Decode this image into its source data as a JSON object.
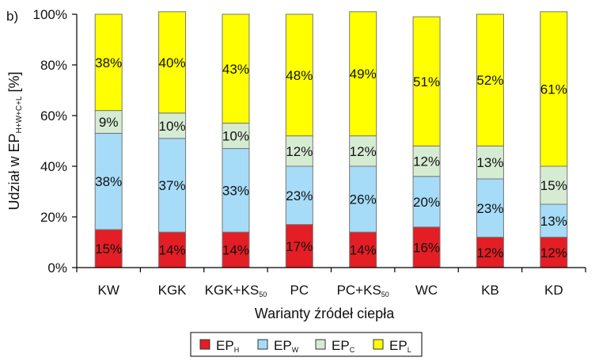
{
  "panel_label": "b)",
  "chart_data": {
    "type": "bar",
    "stacked": true,
    "categories": [
      {
        "text": "KW",
        "sub": ""
      },
      {
        "text": "KGK",
        "sub": ""
      },
      {
        "text": "KGK+KS",
        "sub": "50"
      },
      {
        "text": "PC",
        "sub": ""
      },
      {
        "text": "PC+KS",
        "sub": "50"
      },
      {
        "text": "WC",
        "sub": ""
      },
      {
        "text": "KB",
        "sub": ""
      },
      {
        "text": "KD",
        "sub": ""
      }
    ],
    "series": [
      {
        "name": "EP",
        "sub": "H",
        "color": "#e31e24",
        "values": [
          15,
          14,
          14,
          17,
          14,
          16,
          12,
          12
        ]
      },
      {
        "name": "EP",
        "sub": "W",
        "color": "#a6dcf7",
        "values": [
          38,
          37,
          33,
          23,
          26,
          20,
          23,
          13
        ]
      },
      {
        "name": "EP",
        "sub": "C",
        "color": "#d6ecd2",
        "values": [
          9,
          10,
          10,
          12,
          12,
          12,
          13,
          15
        ]
      },
      {
        "name": "EP",
        "sub": "L",
        "color": "#ffff00",
        "values": [
          38,
          40,
          43,
          48,
          49,
          51,
          52,
          61
        ]
      }
    ],
    "ylim": [
      0,
      100
    ],
    "yticks": [
      0,
      20,
      40,
      60,
      80,
      100
    ],
    "ytick_suffix": "%",
    "value_suffix": "%",
    "ylabel": {
      "main": "Udział w EP",
      "sub": "H+W+C+L",
      "unit": " [%]"
    },
    "xlabel": "Warianty źródeł ciepła",
    "legend_position": "bottom-center",
    "grid": false
  }
}
